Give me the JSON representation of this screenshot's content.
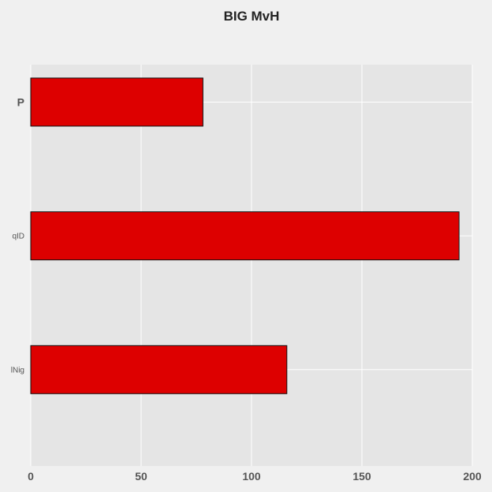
{
  "chart_data": {
    "type": "bar",
    "orientation": "horizontal",
    "title": "BIG MvH",
    "xlabel": "",
    "ylabel": "",
    "categories": [
      "P",
      "qID",
      "lNig"
    ],
    "values": [
      78,
      194,
      116
    ],
    "xlim": [
      0,
      200
    ],
    "xticks": [
      0,
      50,
      100,
      150,
      200
    ],
    "grid": true,
    "colors": {
      "bar_fill": "#dd0000",
      "bar_edge": "#111111",
      "plot_background": "#e5e5e5",
      "figure_background": "#f0f0f0",
      "grid": "#ffffff"
    }
  }
}
